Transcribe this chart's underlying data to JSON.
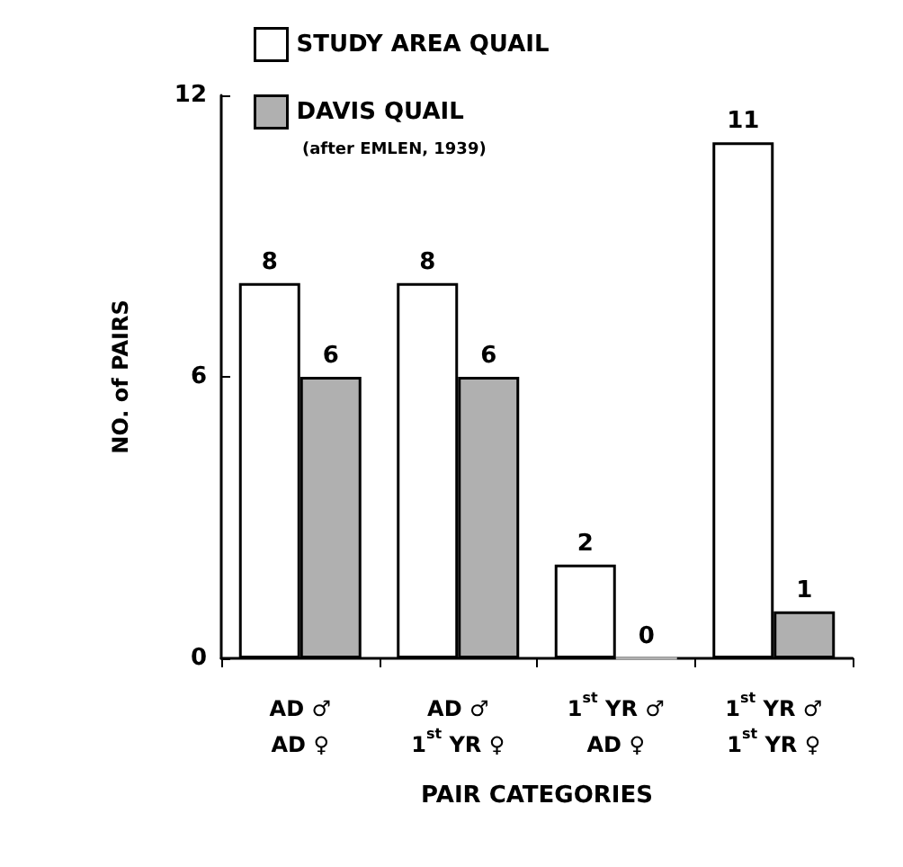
{
  "chart_data": {
    "type": "bar",
    "xlabel": "PAIR CATEGORIES",
    "ylabel": "NO. of PAIRS",
    "categories": [
      "AD ♂\nAD ♀",
      "AD ♂\n1$^{st}$ YR ♀",
      "1$^{st}$ YR ♂\nAD ♀",
      "1$^{st}$ YR ♂\n1$^{st}$ YR ♀"
    ],
    "series": [
      {
        "name": "STUDY AREA QUAIL",
        "color": "#ffffff",
        "values": [
          8,
          8,
          2,
          11
        ]
      },
      {
        "name": "DAVIS QUAIL",
        "color": "#b0b0b0",
        "values": [
          6,
          6,
          0,
          1
        ]
      }
    ],
    "annotations": [
      "(after EMLEN, 1939)"
    ],
    "ylim": [
      0,
      12
    ],
    "yticks": [
      0,
      6,
      12
    ],
    "grid": false,
    "legend": "top left",
    "data_labels": true
  }
}
